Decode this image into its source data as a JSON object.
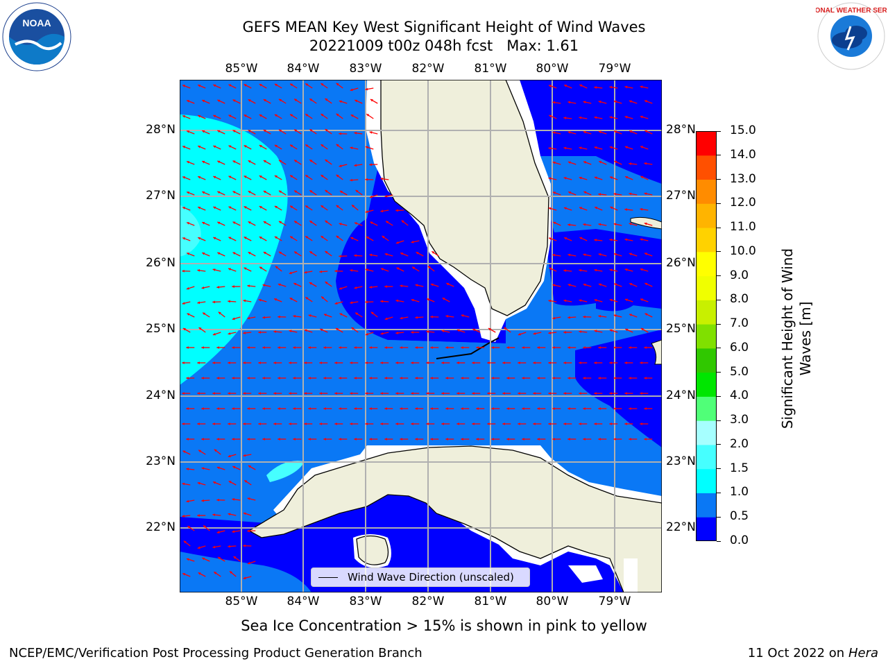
{
  "title_line1": "GEFS MEAN Key West Significant Height of Wind Waves",
  "title_line2": "20221009 t00z 048h fcst   Max: 1.61",
  "lon_labels": [
    "85°W",
    "84°W",
    "83°W",
    "82°W",
    "81°W",
    "80°W",
    "79°W"
  ],
  "lat_labels": [
    "28°N",
    "27°N",
    "26°N",
    "25°N",
    "24°N",
    "23°N",
    "22°N"
  ],
  "legend_text": "Wind Wave Direction (unscaled)",
  "colorbar": {
    "label": "Significant Height of Wind\nWaves [m]",
    "ticks": [
      "0.0",
      "0.5",
      "1.0",
      "1.5",
      "2.0",
      "3.0",
      "4.0",
      "5.0",
      "6.0",
      "7.0",
      "8.0",
      "9.0",
      "10.0",
      "11.0",
      "12.0",
      "13.0",
      "14.0",
      "15.0"
    ],
    "colors": [
      "#0000ff",
      "#0a78f5",
      "#00ffff",
      "#46ffff",
      "#a6ffff",
      "#50ff78",
      "#00e600",
      "#30c800",
      "#80e000",
      "#c8f000",
      "#f0ff00",
      "#ffff00",
      "#ffd200",
      "#ffb400",
      "#ff8c00",
      "#ff5000",
      "#ff0000"
    ]
  },
  "colors": {
    "deep_blue": "#0000ff",
    "mid_blue": "#0a78f5",
    "cyan": "#00ffff",
    "light_cyan": "#46ffff",
    "land": "#efefdb",
    "arrow": "#ff0000"
  },
  "sea_ice_note": "Sea Ice Concentration > 15% is shown in pink to yellow",
  "footer_left": "NCEP/EMC/Verification Post Processing Product Generation Branch",
  "footer_date": "11 Oct 2022 on ",
  "footer_host": "Hera",
  "logo_left": "NOAA",
  "logo_right": "NATIONAL WEATHER SERVICE"
}
